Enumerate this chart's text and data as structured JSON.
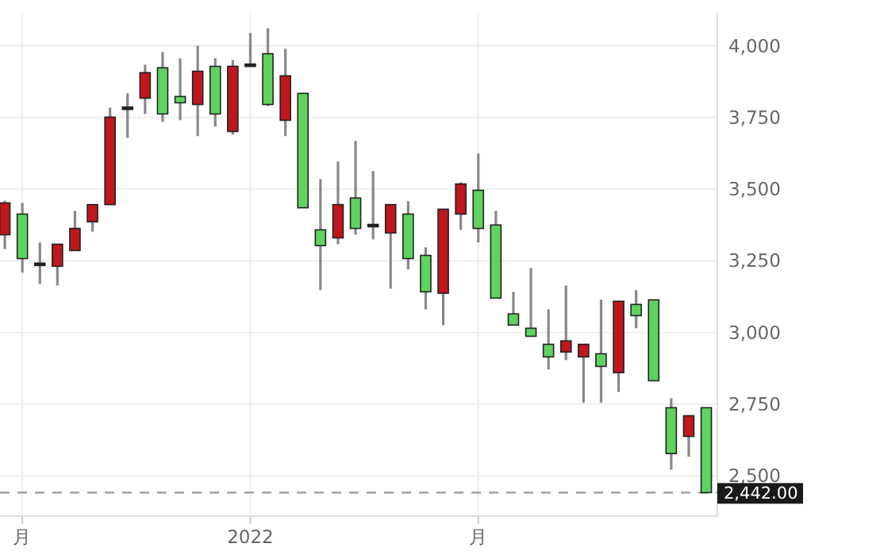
{
  "chart_data": {
    "type": "candlestick",
    "categories": [
      null,
      "月",
      null,
      null,
      null,
      null,
      null,
      null,
      null,
      null,
      null,
      null,
      null,
      null,
      "2022",
      null,
      null,
      null,
      null,
      null,
      null,
      null,
      null,
      null,
      null,
      null,
      null,
      "月",
      null,
      null,
      null,
      null,
      null,
      null,
      null,
      null,
      null,
      null,
      null,
      null,
      null
    ],
    "ohlc": [
      [
        3341,
        3460,
        3291,
        3452
      ],
      [
        3413,
        3452,
        3209,
        3258
      ],
      [
        3242,
        3314,
        3170,
        3238
      ],
      [
        3231,
        3308,
        3164,
        3308
      ],
      [
        3286,
        3424,
        3286,
        3363
      ],
      [
        3386,
        3446,
        3352,
        3446
      ],
      [
        3446,
        3784,
        3446,
        3751
      ],
      [
        3782,
        3834,
        3679,
        3786
      ],
      [
        3817,
        3934,
        3762,
        3906
      ],
      [
        3923,
        3978,
        3734,
        3762
      ],
      [
        3823,
        3956,
        3740,
        3801
      ],
      [
        3795,
        4000,
        3685,
        3911
      ],
      [
        3928,
        3956,
        3718,
        3762
      ],
      [
        3701,
        3950,
        3690,
        3928
      ],
      [
        3932,
        4044,
        3932,
        3936
      ],
      [
        3972,
        4061,
        3790,
        3795
      ],
      [
        3740,
        3989,
        3685,
        3895
      ],
      [
        3834,
        3834,
        3435,
        3435
      ],
      [
        3358,
        3535,
        3148,
        3303
      ],
      [
        3330,
        3596,
        3308,
        3446
      ],
      [
        3469,
        3668,
        3341,
        3363
      ],
      [
        3377,
        3563,
        3325,
        3373
      ],
      [
        3347,
        3446,
        3153,
        3446
      ],
      [
        3413,
        3458,
        3220,
        3258
      ],
      [
        3269,
        3297,
        3081,
        3142
      ],
      [
        3137,
        3430,
        3026,
        3430
      ],
      [
        3413,
        3524,
        3358,
        3518
      ],
      [
        3496,
        3624,
        3314,
        3363
      ],
      [
        3375,
        3424,
        3120,
        3120
      ],
      [
        3065,
        3142,
        3026,
        3026
      ],
      [
        3015,
        3225,
        2987,
        2987
      ],
      [
        2959,
        3081,
        2871,
        2915
      ],
      [
        2932,
        3164,
        2904,
        2971
      ],
      [
        2915,
        2959,
        2755,
        2959
      ],
      [
        2926,
        3114,
        2755,
        2882
      ],
      [
        2860,
        3109,
        2793,
        3109
      ],
      [
        3098,
        3148,
        3015,
        3059
      ],
      [
        3114,
        3114,
        2832,
        2832
      ],
      [
        2738,
        2771,
        2522,
        2578
      ],
      [
        2638,
        2710,
        2567,
        2710
      ],
      [
        2738,
        2738,
        2442,
        2442
      ]
    ],
    "colors": [
      "#c0161e",
      "#5fd35f",
      "#222222",
      "#c0161e",
      "#c0161e",
      "#c0161e",
      "#c0161e",
      "#222222",
      "#c0161e",
      "#5fd35f",
      "#5fd35f",
      "#c0161e",
      "#5fd35f",
      "#c0161e",
      "#222222",
      "#5fd35f",
      "#c0161e",
      "#5fd35f",
      "#5fd35f",
      "#c0161e",
      "#5fd35f",
      "#222222",
      "#c0161e",
      "#5fd35f",
      "#5fd35f",
      "#c0161e",
      "#c0161e",
      "#5fd35f",
      "#5fd35f",
      "#5fd35f",
      "#5fd35f",
      "#5fd35f",
      "#c0161e",
      "#c0161e",
      "#5fd35f",
      "#c0161e",
      "#5fd35f",
      "#5fd35f",
      "#5fd35f",
      "#c0161e",
      "#5fd35f"
    ],
    "ylim": [
      2360,
      4115
    ],
    "yticks": [
      {
        "value": 2500,
        "label": "2,500"
      },
      {
        "value": 2750,
        "label": "2,750"
      },
      {
        "value": 3000,
        "label": "3,000"
      },
      {
        "value": 3250,
        "label": "3,250"
      },
      {
        "value": 3500,
        "label": "3,500"
      },
      {
        "value": 3750,
        "label": "3,750"
      },
      {
        "value": 4000,
        "label": "4,000"
      }
    ],
    "ref_lines": [
      {
        "axis": "y",
        "value": 2442,
        "label": "2,442.00",
        "color": "#999999",
        "line_style": "dashed"
      }
    ],
    "grid": true
  }
}
